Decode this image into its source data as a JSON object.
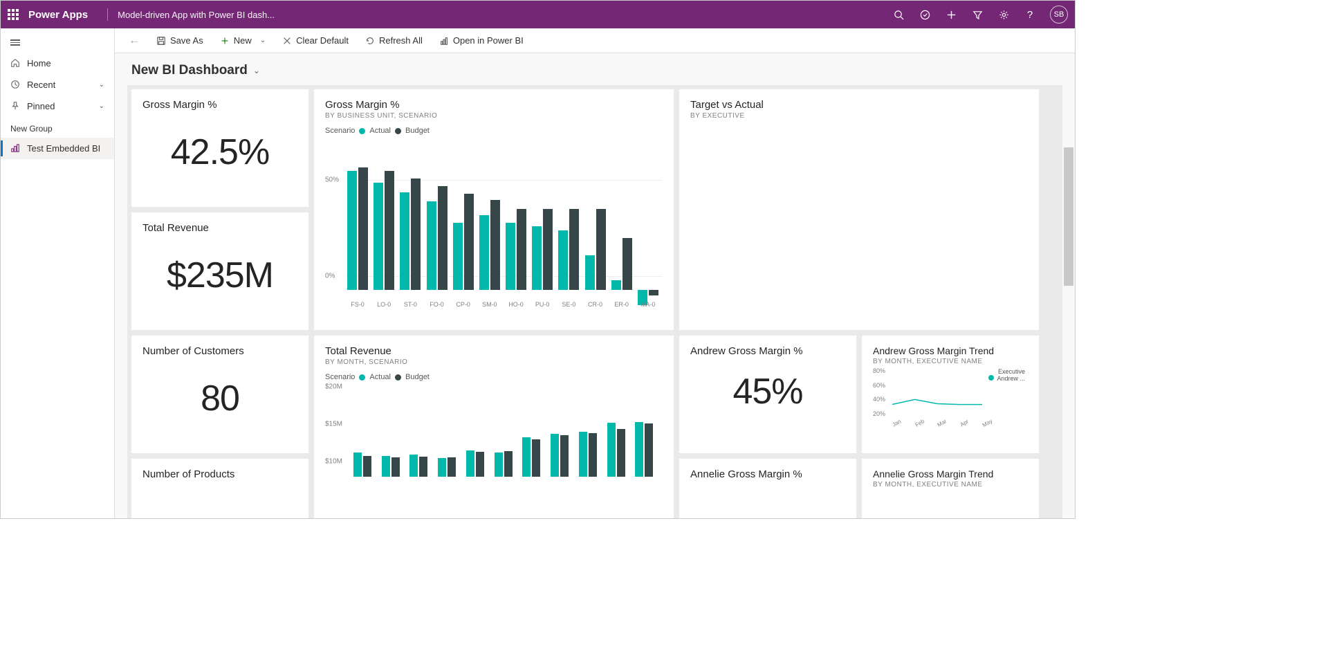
{
  "topbar": {
    "app_name": "Power Apps",
    "subtitle": "Model-driven App with Power BI dash...",
    "avatar": "SB"
  },
  "leftnav": {
    "home": "Home",
    "recent": "Recent",
    "pinned": "Pinned",
    "group": "New Group",
    "item1": "Test Embedded BI"
  },
  "cmdbar": {
    "save_as": "Save As",
    "new": "New",
    "clear_default": "Clear Default",
    "refresh_all": "Refresh All",
    "open_pbi": "Open in Power BI"
  },
  "page": {
    "title": "New BI Dashboard"
  },
  "colors": {
    "actual": "#01b8aa",
    "budget": "#374649",
    "canvas": "#eaeaea",
    "card_bg": "#ffffff",
    "grid": "#eeeeee",
    "text_muted": "#808080"
  },
  "cards": {
    "gm_pct": {
      "title": "Gross Margin %",
      "value": "42.5%"
    },
    "total_rev": {
      "title": "Total Revenue",
      "value": "$235M"
    },
    "num_cust": {
      "title": "Number of Customers",
      "value": "80"
    },
    "num_prod": {
      "title": "Number of Products"
    },
    "gm_chart": {
      "title": "Gross Margin %",
      "sub": "BY BUSINESS UNIT, SCENARIO",
      "legend_label": "Scenario",
      "legend_actual": "Actual",
      "legend_budget": "Budget",
      "ylabels": [
        "0%",
        "50%"
      ],
      "ymax": 70,
      "categories": [
        "FS-0",
        "LO-0",
        "ST-0",
        "FO-0",
        "CP-0",
        "SM-0",
        "HO-0",
        "PU-0",
        "SE-0",
        "CR-0",
        "ER-0",
        "MA-0"
      ],
      "actual": [
        62,
        56,
        51,
        46,
        35,
        39,
        35,
        33,
        31,
        18,
        5,
        -8
      ],
      "budget": [
        64,
        62,
        58,
        54,
        50,
        47,
        42,
        42,
        42,
        42,
        27,
        -3
      ]
    },
    "tva": {
      "title": "Target vs Actual",
      "sub": "BY EXECUTIVE"
    },
    "rev_chart": {
      "title": "Total Revenue",
      "sub": "BY MONTH, SCENARIO",
      "legend_label": "Scenario",
      "legend_actual": "Actual",
      "legend_budget": "Budget",
      "ylabels": [
        "$10M",
        "$15M",
        "$20M"
      ],
      "ymin": 8,
      "ymax": 20,
      "actual": [
        11.2,
        10.8,
        11.0,
        10.5,
        11.5,
        11.2,
        13.3,
        13.7,
        14.0,
        15.2,
        15.3
      ],
      "budget": [
        10.8,
        10.6,
        10.7,
        10.6,
        11.3,
        11.4,
        13.0,
        13.5,
        13.8,
        14.4,
        15.1
      ]
    },
    "andrew_gm": {
      "title": "Andrew Gross Margin %",
      "value": "45%"
    },
    "annelie_gm": {
      "title": "Annelie Gross Margin %"
    },
    "andrew_trend": {
      "title": "Andrew Gross Margin Trend",
      "sub": "BY MONTH, EXECUTIVE NAME",
      "legend_title": "Executive",
      "legend_item": "Andrew ...",
      "ylabels": [
        "20%",
        "40%",
        "60%",
        "80%"
      ],
      "xlabels": [
        "Jan",
        "Feb",
        "Mar",
        "Apr",
        "May"
      ],
      "ymin": 20,
      "ymax": 80,
      "values": [
        33,
        40,
        34,
        33,
        33
      ]
    },
    "annelie_trend": {
      "title": "Annelie Gross Margin Trend",
      "sub": "BY MONTH, EXECUTIVE NAME"
    }
  }
}
